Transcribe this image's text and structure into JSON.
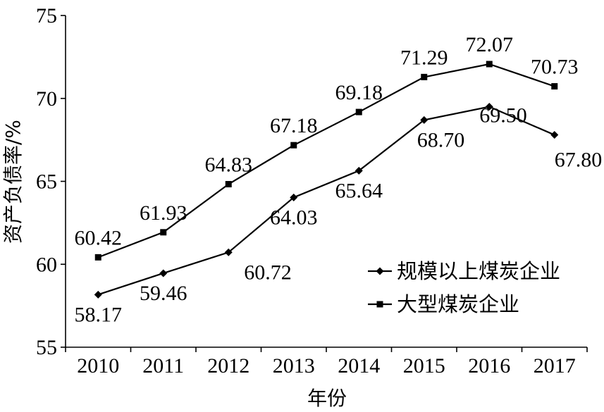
{
  "chart_data": {
    "type": "line",
    "title": "",
    "xlabel": "年份",
    "ylabel": "资产负债率/%",
    "categories": [
      "2010",
      "2011",
      "2012",
      "2013",
      "2014",
      "2015",
      "2016",
      "2017"
    ],
    "ylim": [
      55,
      75
    ],
    "yticks": [
      55,
      60,
      65,
      70,
      75
    ],
    "grid": false,
    "legend_position": "right",
    "series": [
      {
        "name": "规模以上煤炭企业",
        "marker": "diamond",
        "color": "#000000",
        "values": [
          58.17,
          59.46,
          60.72,
          64.03,
          65.64,
          68.7,
          69.5,
          67.8
        ],
        "labels": [
          "58.17",
          "59.46",
          "60.72",
          "64.03",
          "65.64",
          "68.70",
          "69.50",
          "67.80"
        ]
      },
      {
        "name": "大型煤炭企业",
        "marker": "square",
        "color": "#000000",
        "values": [
          60.42,
          61.93,
          64.83,
          67.18,
          69.18,
          71.29,
          72.07,
          70.73
        ],
        "labels": [
          "60.42",
          "61.93",
          "64.83",
          "67.18",
          "69.18",
          "71.29",
          "72.07",
          "70.73"
        ]
      }
    ]
  }
}
